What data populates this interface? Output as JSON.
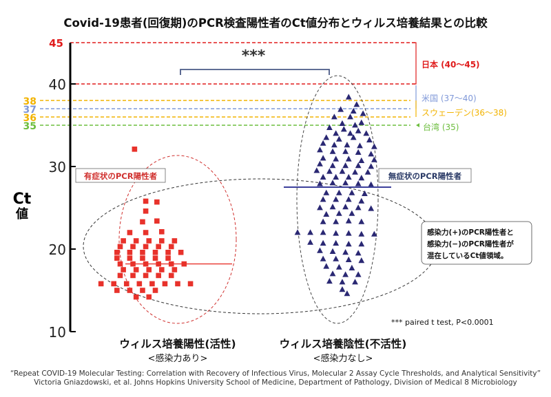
{
  "chart_data": {
    "type": "scatter",
    "title": "Covid-19患者(回復期)のPCR検査陽性者のCt値分布とウィルス培養結果との比較",
    "ylabel_line1": "Ct",
    "ylabel_line2": "値",
    "ylim": [
      10,
      45
    ],
    "yticks": [
      "10",
      "20",
      "30",
      "40"
    ],
    "categories": [
      {
        "label": "ウィルス培養陽性(活性)",
        "sublabel": "<感染力あり>"
      },
      {
        "label": "ウィルス培養陰性(不活性)",
        "sublabel": "<感染力なし>"
      }
    ],
    "series": [
      {
        "marker": "square",
        "color": "#e8322b",
        "median": 18.2,
        "points": [
          [
            0.73,
            32.1
          ],
          [
            0.8,
            25.8
          ],
          [
            0.87,
            25.7
          ],
          [
            0.8,
            24.6
          ],
          [
            0.78,
            23.3
          ],
          [
            0.87,
            23.4
          ],
          [
            0.7,
            22.0
          ],
          [
            0.8,
            22.0
          ],
          [
            0.9,
            22.1
          ],
          [
            0.66,
            21.0
          ],
          [
            0.74,
            21.0
          ],
          [
            0.82,
            21.0
          ],
          [
            0.9,
            21.0
          ],
          [
            0.98,
            21.0
          ],
          [
            0.64,
            20.3
          ],
          [
            0.72,
            20.3
          ],
          [
            0.8,
            20.3
          ],
          [
            0.88,
            20.3
          ],
          [
            0.96,
            20.3
          ],
          [
            0.62,
            19.6
          ],
          [
            0.7,
            19.6
          ],
          [
            0.78,
            19.6
          ],
          [
            0.86,
            19.6
          ],
          [
            0.94,
            19.6
          ],
          [
            1.02,
            19.6
          ],
          [
            0.62,
            18.9
          ],
          [
            0.7,
            18.9
          ],
          [
            0.78,
            18.9
          ],
          [
            0.86,
            18.9
          ],
          [
            0.94,
            18.9
          ],
          [
            0.64,
            18.2
          ],
          [
            0.72,
            18.2
          ],
          [
            0.8,
            18.2
          ],
          [
            0.88,
            18.2
          ],
          [
            0.96,
            18.2
          ],
          [
            1.04,
            18.2
          ],
          [
            0.66,
            17.5
          ],
          [
            0.74,
            17.5
          ],
          [
            0.82,
            17.5
          ],
          [
            0.9,
            17.5
          ],
          [
            0.98,
            17.5
          ],
          [
            0.64,
            16.8
          ],
          [
            0.72,
            16.8
          ],
          [
            0.8,
            16.8
          ],
          [
            0.88,
            16.8
          ],
          [
            0.96,
            16.8
          ],
          [
            0.52,
            15.8
          ],
          [
            0.6,
            15.8
          ],
          [
            0.68,
            15.8
          ],
          [
            0.76,
            15.8
          ],
          [
            0.84,
            15.8
          ],
          [
            0.92,
            15.8
          ],
          [
            1.0,
            15.8
          ],
          [
            1.08,
            15.8
          ],
          [
            0.62,
            15.0
          ],
          [
            0.7,
            15.0
          ],
          [
            0.78,
            15.0
          ],
          [
            0.86,
            15.0
          ],
          [
            0.74,
            14.2
          ],
          [
            0.82,
            14.2
          ]
        ]
      },
      {
        "marker": "triangle",
        "color": "#2a2873",
        "median": 27.5,
        "points": [
          [
            2.07,
            38.4
          ],
          [
            2.12,
            37.5
          ],
          [
            2.02,
            36.9
          ],
          [
            2.1,
            36.7
          ],
          [
            2.16,
            36.4
          ],
          [
            1.98,
            36.0
          ],
          [
            2.08,
            36.0
          ],
          [
            2.15,
            35.3
          ],
          [
            2.03,
            35.2
          ],
          [
            2.11,
            35.0
          ],
          [
            1.95,
            34.7
          ],
          [
            2.04,
            34.5
          ],
          [
            2.13,
            34.3
          ],
          [
            1.99,
            34.0
          ],
          [
            2.08,
            34.0
          ],
          [
            2.18,
            34.0
          ],
          [
            1.93,
            33.5
          ],
          [
            2.01,
            33.3
          ],
          [
            2.1,
            33.5
          ],
          [
            2.2,
            33.2
          ],
          [
            1.91,
            32.8
          ],
          [
            1.98,
            32.6
          ],
          [
            2.06,
            32.6
          ],
          [
            2.14,
            32.5
          ],
          [
            2.23,
            32.4
          ],
          [
            1.89,
            32.0
          ],
          [
            1.97,
            31.8
          ],
          [
            2.05,
            31.8
          ],
          [
            2.13,
            31.7
          ],
          [
            2.21,
            31.5
          ],
          [
            1.91,
            31.0
          ],
          [
            1.99,
            30.9
          ],
          [
            2.07,
            30.9
          ],
          [
            2.15,
            30.7
          ],
          [
            2.23,
            30.8
          ],
          [
            1.89,
            30.3
          ],
          [
            1.97,
            30.1
          ],
          [
            2.05,
            30.1
          ],
          [
            2.13,
            30.1
          ],
          [
            2.21,
            30.0
          ],
          [
            1.87,
            29.5
          ],
          [
            1.95,
            29.4
          ],
          [
            2.03,
            29.4
          ],
          [
            2.11,
            29.3
          ],
          [
            2.19,
            29.3
          ],
          [
            1.91,
            28.7
          ],
          [
            1.99,
            28.7
          ],
          [
            2.07,
            28.7
          ],
          [
            2.15,
            28.6
          ],
          [
            1.89,
            27.9
          ],
          [
            1.97,
            28.0
          ],
          [
            2.05,
            28.0
          ],
          [
            2.13,
            27.9
          ],
          [
            2.21,
            27.8
          ],
          [
            1.93,
            26.8
          ],
          [
            2.01,
            26.8
          ],
          [
            2.09,
            26.8
          ],
          [
            2.17,
            26.7
          ],
          [
            1.91,
            26.0
          ],
          [
            1.99,
            26.0
          ],
          [
            2.07,
            26.0
          ],
          [
            2.15,
            25.8
          ],
          [
            1.89,
            25.0
          ],
          [
            1.97,
            25.1
          ],
          [
            2.05,
            25.1
          ],
          [
            2.13,
            25.0
          ],
          [
            2.21,
            24.9
          ],
          [
            1.93,
            24.2
          ],
          [
            2.01,
            24.3
          ],
          [
            2.09,
            24.3
          ],
          [
            1.91,
            23.3
          ],
          [
            1.99,
            23.3
          ],
          [
            2.07,
            23.4
          ],
          [
            2.15,
            23.3
          ],
          [
            1.75,
            22.0
          ],
          [
            1.83,
            22.0
          ],
          [
            1.91,
            22.0
          ],
          [
            1.99,
            21.9
          ],
          [
            2.07,
            21.9
          ],
          [
            2.15,
            21.8
          ],
          [
            2.23,
            21.8
          ],
          [
            1.83,
            20.8
          ],
          [
            1.91,
            20.7
          ],
          [
            1.99,
            20.7
          ],
          [
            2.07,
            20.6
          ],
          [
            2.15,
            20.6
          ],
          [
            1.89,
            19.8
          ],
          [
            1.97,
            19.7
          ],
          [
            2.05,
            19.6
          ],
          [
            2.13,
            19.5
          ],
          [
            1.91,
            18.8
          ],
          [
            1.99,
            18.8
          ],
          [
            2.07,
            18.7
          ],
          [
            2.15,
            18.6
          ],
          [
            1.93,
            17.9
          ],
          [
            2.01,
            17.8
          ],
          [
            2.09,
            17.7
          ],
          [
            1.97,
            17.0
          ],
          [
            2.05,
            16.9
          ],
          [
            2.13,
            16.9
          ],
          [
            1.95,
            16.1
          ],
          [
            2.03,
            16.0
          ],
          [
            2.11,
            16.0
          ],
          [
            2.03,
            15.1
          ],
          [
            2.06,
            14.6
          ]
        ]
      }
    ],
    "thresholds": [
      {
        "value": 45,
        "tick": "45",
        "color": "#e01b1b",
        "label": "日本 (40〜45)"
      },
      {
        "value": 40,
        "tick": "",
        "color": "#e01b1b",
        "label": ""
      },
      {
        "value": 38,
        "tick": "38",
        "color": "#f2b300",
        "label": ""
      },
      {
        "value": 37,
        "tick": "37",
        "color": "#7f98d8",
        "label": "米国 (37〜40)"
      },
      {
        "value": 36,
        "tick": "36",
        "color": "#f2b300",
        "label": "スウェーデン(36〜38)"
      },
      {
        "value": 35,
        "tick": "35",
        "color": "#6cbd3d",
        "label": "台湾 (35)"
      }
    ],
    "significance": "***",
    "stat_note": "*** paired t test, P<0.0001",
    "annotations": {
      "symptomatic": "有症状のPCR陽性者",
      "asymptomatic": "無症状のPCR陽性者",
      "mixed_line1": "感染力(+)のPCR陽性者と",
      "mixed_line2": "感染力(−)のPCR陽性者が",
      "mixed_line3": "混在しているCt値領域。"
    }
  },
  "caption": {
    "line1": "“Repeat COVID-19 Molecular Testing: Correlation with Recovery of Infectious Virus, Molecular 2 Assay Cycle Thresholds, and Analytical Sensitivity”",
    "line2": "Victoria Gniazdowski, et al.  Johns Hopkins University School of Medicine, Department of Pathology, Division of Medical 8 Microbiology"
  },
  "colors": {
    "red": "#e01b1b",
    "blue_label": "#7f98d8",
    "yellow": "#f2b300",
    "green": "#6cbd3d",
    "navy": "#2a2873"
  }
}
